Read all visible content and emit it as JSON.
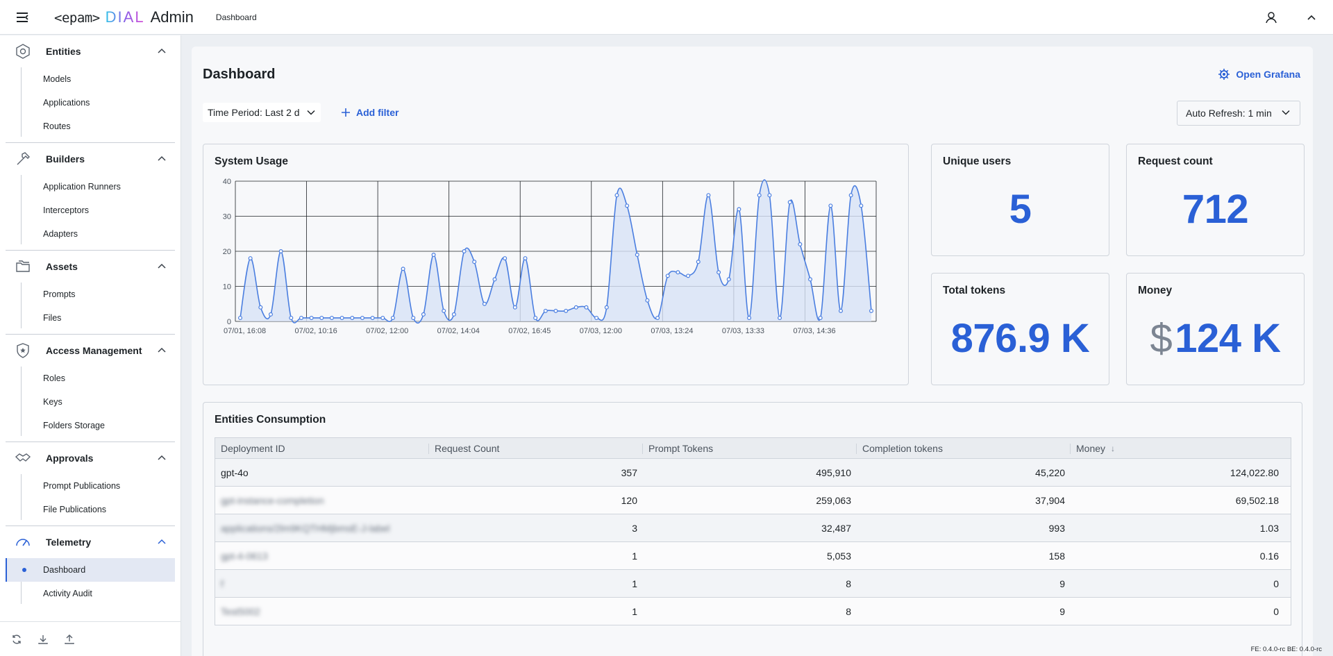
{
  "app": {
    "logo_epam": "<epam>",
    "logo_dial": "DIAL",
    "logo_admin": "Admin"
  },
  "breadcrumb": "Dashboard",
  "sidebar": {
    "groups": [
      {
        "label": "Entities",
        "icon": "hexagon-icon",
        "items": [
          "Models",
          "Applications",
          "Routes"
        ]
      },
      {
        "label": "Builders",
        "icon": "hammer-icon",
        "items": [
          "Application Runners",
          "Interceptors",
          "Adapters"
        ]
      },
      {
        "label": "Assets",
        "icon": "folders-icon",
        "items": [
          "Prompts",
          "Files"
        ]
      },
      {
        "label": "Access Management",
        "icon": "shield-star-icon",
        "items": [
          "Roles",
          "Keys",
          "Folders Storage"
        ]
      },
      {
        "label": "Approvals",
        "icon": "handshake-icon",
        "items": [
          "Prompt Publications",
          "File Publications"
        ]
      },
      {
        "label": "Telemetry",
        "icon": "gauge-icon",
        "items": [
          "Dashboard",
          "Activity Audit"
        ],
        "active": "Dashboard"
      }
    ]
  },
  "main": {
    "title": "Dashboard",
    "open_grafana": "Open Grafana",
    "time_period": "Time Period: Last 2 d",
    "add_filter": "Add filter",
    "auto_refresh": "Auto Refresh: 1 min"
  },
  "stats": {
    "unique_users": {
      "label": "Unique users",
      "value": "5"
    },
    "request_count": {
      "label": "Request count",
      "value": "712"
    },
    "total_tokens": {
      "label": "Total tokens",
      "value": "876.9 K"
    },
    "money": {
      "label": "Money",
      "currency": "$",
      "value": "124 K"
    }
  },
  "chart_data": {
    "type": "area",
    "title": "System Usage",
    "ylim": [
      0,
      40
    ],
    "yticks": [
      0,
      10,
      20,
      30,
      40
    ],
    "xtick_labels": [
      "07/01, 16:08",
      "07/02, 10:16",
      "07/02, 12:00",
      "07/02, 14:04",
      "07/02, 16:45",
      "07/03, 12:00",
      "07/03, 13:24",
      "07/03, 13:33",
      "07/03, 14:36"
    ],
    "grid": true,
    "color": "#4a7ee0",
    "fill": "#d7e2f6",
    "values": [
      1,
      18,
      4,
      2,
      20,
      1,
      1,
      1,
      1,
      1,
      1,
      1,
      1,
      1,
      1,
      1,
      15,
      1,
      2,
      19,
      3,
      2,
      20,
      17,
      5,
      12,
      18,
      4,
      18,
      1,
      3,
      3,
      3,
      4,
      4,
      1,
      4,
      36,
      33,
      19,
      6,
      1,
      13,
      14,
      13,
      17,
      36,
      14,
      12,
      32,
      1,
      36,
      36,
      1,
      34,
      22,
      12,
      1,
      33,
      3,
      36,
      33,
      3
    ]
  },
  "table": {
    "title": "Entities Consumption",
    "columns": [
      "Deployment ID",
      "Request Count",
      "Prompt Tokens",
      "Completion tokens",
      "Money"
    ],
    "sort_indicator": "↓",
    "rows": [
      [
        "gpt-4o",
        "357",
        "495,910",
        "45,220",
        "124,022.80"
      ],
      [
        "gpt-instance-completion",
        "120",
        "259,063",
        "37,904",
        "69,502.18"
      ],
      [
        "applications/2lm9KQTHMjbmsE-J-label",
        "3",
        "32,487",
        "993",
        "1.03"
      ],
      [
        "gpt-4-0613",
        "1",
        "5,053",
        "158",
        "0.16"
      ],
      [
        "f",
        "1",
        "8",
        "9",
        "0"
      ],
      [
        "Test5002",
        "1",
        "8",
        "9",
        "0"
      ]
    ],
    "blurred_rows": [
      1,
      2,
      3,
      4,
      5
    ]
  },
  "version": "FE: 0.4.0-rc  BE: 0.4.0-rc"
}
